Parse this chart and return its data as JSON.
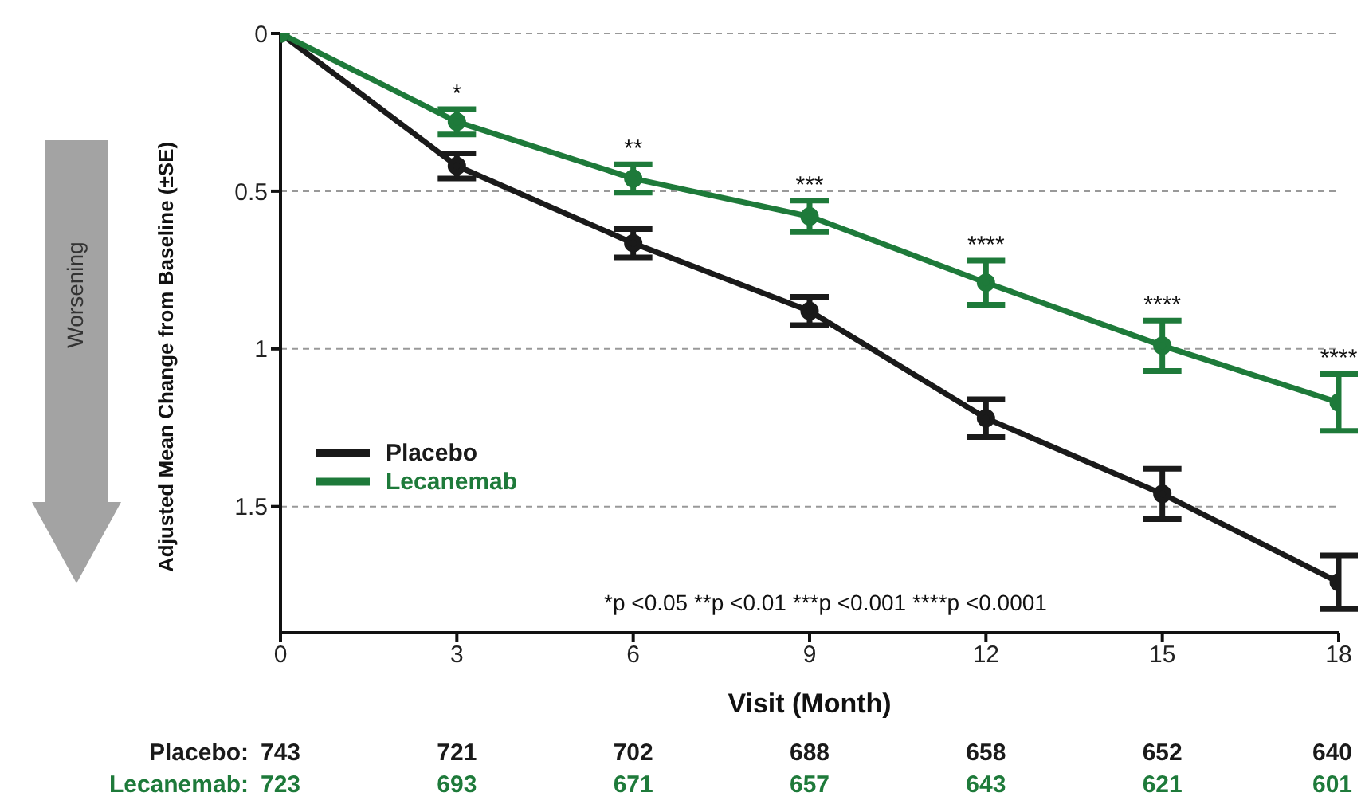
{
  "chart_data": {
    "type": "line",
    "xlabel": "Visit (Month)",
    "ylabel": "Adjusted Mean Change from Baseline (±SE)",
    "x": [
      0,
      3,
      6,
      9,
      12,
      15,
      18
    ],
    "xlim": [
      0,
      18
    ],
    "xticks": [
      0,
      3,
      6,
      9,
      12,
      15,
      18
    ],
    "ylim": [
      1.9,
      0
    ],
    "yticks": [
      0,
      0.5,
      1,
      1.5
    ],
    "grid": "y",
    "legend": "left",
    "marker": "circle",
    "line_style": "solid",
    "series": [
      {
        "name": "Placebo",
        "color": "#1a1a1a",
        "values": [
          0,
          0.42,
          0.665,
          0.88,
          1.22,
          1.46,
          1.74
        ],
        "errors": [
          null,
          0.04,
          0.045,
          0.045,
          0.06,
          0.08,
          0.085
        ]
      },
      {
        "name": "Lecanemab",
        "color": "#1e7a3a",
        "values": [
          0,
          0.28,
          0.46,
          0.58,
          0.79,
          0.99,
          1.17
        ],
        "errors": [
          null,
          0.04,
          0.045,
          0.05,
          0.07,
          0.08,
          0.09
        ]
      }
    ],
    "annotations": [
      "*p <0.05 **p <0.01 ***p <0.001  ****p <0.0001",
      "Worsening",
      "Placebo:",
      "743",
      "721",
      "702",
      "688",
      "658",
      "652",
      "640",
      "Lecanemab:",
      "723",
      "693",
      "671",
      "657",
      "643",
      "621",
      "601",
      {
        "text": "*",
        "x": 3,
        "y": 0.24
      },
      {
        "text": "**",
        "x": 6,
        "y": 0.415
      },
      {
        "text": "***",
        "x": 9,
        "y": 0.53
      },
      {
        "text": "****",
        "x": 12,
        "y": 0.72
      },
      {
        "text": "****",
        "x": 15,
        "y": 0.91
      },
      {
        "text": "****",
        "x": 18,
        "y": 1.08
      }
    ]
  }
}
